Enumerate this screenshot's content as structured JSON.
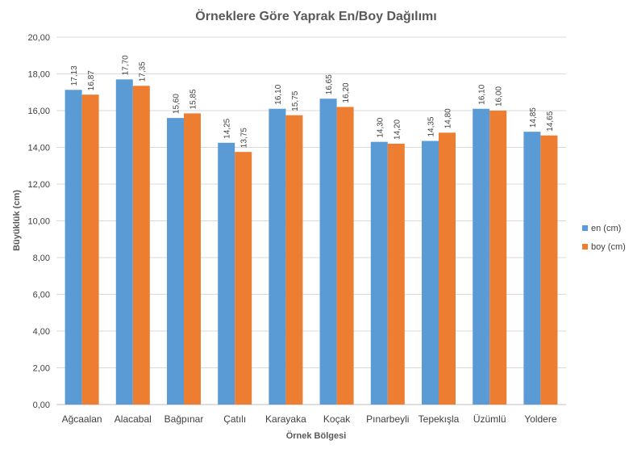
{
  "chart_data": {
    "type": "bar",
    "title": "Örneklere Göre Yaprak En/Boy Dağılımı",
    "xlabel": "Örnek Bölgesi",
    "ylabel": "Büyüklük (cm)",
    "ylim": [
      0,
      20
    ],
    "ytick_step": 2,
    "ytick_labels": [
      "0,00",
      "2,00",
      "4,00",
      "6,00",
      "8,00",
      "10,00",
      "12,00",
      "14,00",
      "16,00",
      "18,00",
      "20,00"
    ],
    "grid": true,
    "legend_position": "right",
    "categories": [
      "Ağcaalan",
      "Alacabal",
      "Bağpınar",
      "Çatılı",
      "Karayaka",
      "Koçak",
      "Pınarbeyli",
      "Tepekışla",
      "Üzümlü",
      "Yoldere"
    ],
    "series": [
      {
        "name": "en (cm)",
        "color": "#5B9BD5",
        "values": [
          17.13,
          17.7,
          15.6,
          14.25,
          16.1,
          16.65,
          14.3,
          14.35,
          16.1,
          14.85
        ],
        "labels": [
          "17,13",
          "17,70",
          "15,60",
          "14,25",
          "16,10",
          "16,65",
          "14,30",
          "14,35",
          "16,10",
          "14,85"
        ]
      },
      {
        "name": "boy (cm)",
        "color": "#ED7D31",
        "values": [
          16.87,
          17.35,
          15.85,
          13.75,
          15.75,
          16.2,
          14.2,
          14.8,
          16.0,
          14.65
        ],
        "labels": [
          "16,87",
          "17,35",
          "15,85",
          "13,75",
          "15,75",
          "16,20",
          "14,20",
          "14,80",
          "16,00",
          "14,65"
        ]
      }
    ]
  }
}
